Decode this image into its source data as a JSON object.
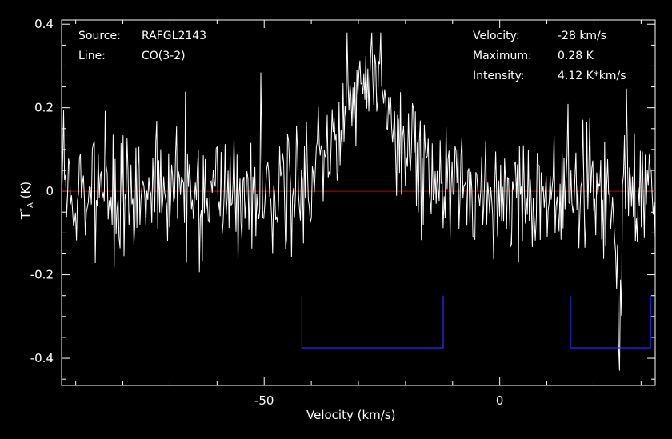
{
  "info_left": [
    {
      "label": "Source:",
      "value": "RAFGL2143"
    },
    {
      "label": "Line:",
      "value": "CO(3-2)"
    }
  ],
  "info_right": [
    {
      "label": "Velocity:",
      "value": "-28 km/s"
    },
    {
      "label": "Maximum:",
      "value": "0.28 K"
    },
    {
      "label": "Intensity:",
      "value": "4.12 K*km/s"
    }
  ],
  "chart_data": {
    "type": "line",
    "title": "",
    "xlabel": "Velocity (km/s)",
    "ylabel": "T*A (K)",
    "ylabel_main": "T",
    "ylabel_sup": "*",
    "ylabel_sub": "A",
    "ylabel_unit": " (K)",
    "xlim": [
      -93,
      33
    ],
    "ylim": [
      -0.465,
      0.41
    ],
    "xticks": [
      -50,
      0
    ],
    "xtick_labels": [
      "-50",
      "0"
    ],
    "yticks": [
      -0.4,
      -0.2,
      0,
      0.2,
      0.4
    ],
    "ytick_labels": [
      "-0.4",
      "-0.2",
      "0",
      "0.2",
      "0.4"
    ],
    "grid": false,
    "colors": {
      "spectrum": "#ffffff",
      "baseline": "#cc0000",
      "windows": "#2a2aff",
      "axes": "#ffffff"
    },
    "baseline_value": 0,
    "baseline_windows": [
      {
        "x_start": -42,
        "x_end": -12,
        "y_bottom": -0.375,
        "y_top": -0.25
      },
      {
        "x_start": 15,
        "x_end": 32,
        "y_bottom": -0.375,
        "y_top": -0.25
      }
    ],
    "spectrum": {
      "x_start": -93,
      "x_end": 33,
      "points": 600,
      "noise_rms": 0.075,
      "seed": 2143,
      "line_component": {
        "center": -28,
        "peak": 0.26,
        "sigma": 6.5
      },
      "absorption_component": {
        "center": 25.5,
        "depth": -0.34,
        "sigma": 0.55
      },
      "emission_spike": {
        "center": 26.5,
        "peak": 0.14,
        "sigma": 0.5
      }
    }
  }
}
